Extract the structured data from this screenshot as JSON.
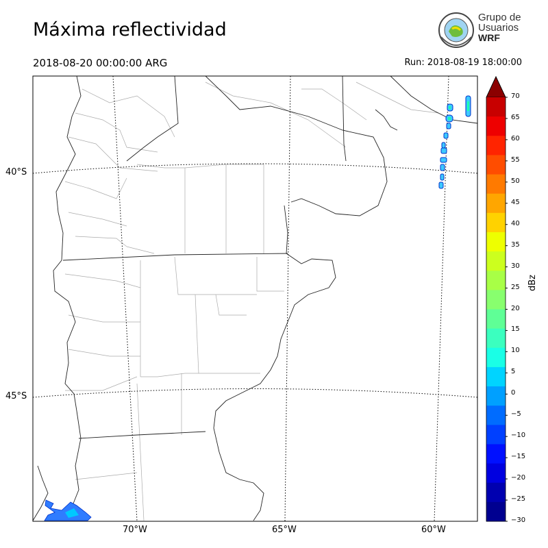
{
  "title": "Máxima reflectividad",
  "valid_time": "2018-08-20 00:00:00 ARG",
  "run_time": "Run: 2018-08-19 18:00:00",
  "logo": {
    "line1": "Grupo de",
    "line2": "Usuarios",
    "line3": "WRF",
    "icon": "wrf-globe-seal-icon"
  },
  "map": {
    "lat_labels": [
      "40°S",
      "45°S"
    ],
    "lon_labels": [
      "70°W",
      "65°W",
      "60°W"
    ],
    "gridlines": "dotted",
    "background": "#ffffff"
  },
  "colorbar": {
    "unit": "dBz",
    "ticks": [
      "70",
      "65",
      "60",
      "55",
      "50",
      "45",
      "40",
      "35",
      "30",
      "25",
      "20",
      "15",
      "10",
      "5",
      "0",
      "−5",
      "−10",
      "−15",
      "−20",
      "−25",
      "−30"
    ],
    "colors_top_to_bottom": [
      "#8b0000",
      "#c80000",
      "#ee0000",
      "#ff2400",
      "#ff4d00",
      "#ff7a00",
      "#ffa600",
      "#ffd200",
      "#eeff00",
      "#ccff1e",
      "#a8ff46",
      "#88ff6e",
      "#5fff96",
      "#3bffbf",
      "#1affe6",
      "#00d4ff",
      "#00a0ff",
      "#006cff",
      "#0040ff",
      "#0010ff",
      "#0000e0",
      "#0000b0",
      "#000090"
    ],
    "extend": "max"
  }
}
